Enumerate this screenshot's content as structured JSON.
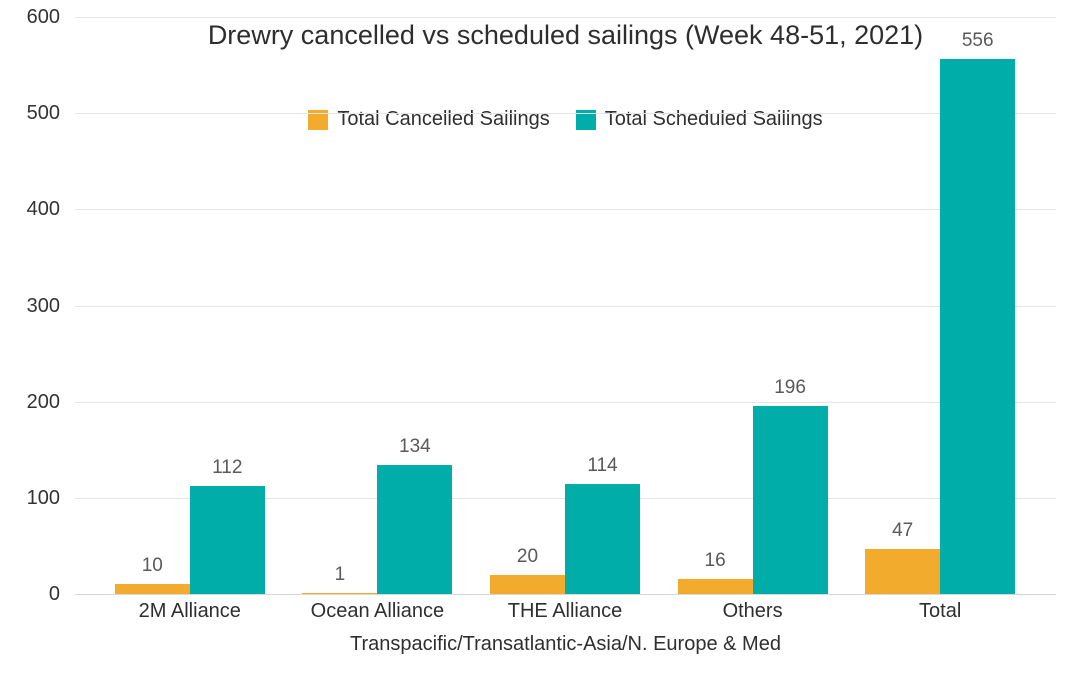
{
  "chart_data": {
    "type": "bar",
    "title": "Drewry cancelled vs scheduled sailings (Week 48-51, 2021)",
    "categories": [
      "2M Alliance",
      "Ocean Alliance",
      "THE Alliance",
      "Others",
      "Total"
    ],
    "series": [
      {
        "name": "Total Cancelled Sailings",
        "color": "#F3AB2D",
        "values": [
          10,
          1,
          20,
          16,
          47
        ]
      },
      {
        "name": "Total Scheduled Sailings",
        "color": "#00ADA8",
        "values": [
          112,
          134,
          114,
          196,
          556
        ]
      }
    ],
    "xlabel": "Transpacific/Transatlantic-Asia/N. Europe & Med",
    "ylabel": "",
    "ylim": [
      0,
      600
    ],
    "yticks": [
      0,
      100,
      200,
      300,
      400,
      500,
      600
    ],
    "grid": true,
    "legend_position": "top-center",
    "value_labels": true,
    "colors": {
      "cancelled": "#F3AB2D",
      "scheduled": "#00ADA8",
      "gridline": "#e4e4e4",
      "text": "#2f2f2f",
      "value_label": "#595959"
    }
  }
}
